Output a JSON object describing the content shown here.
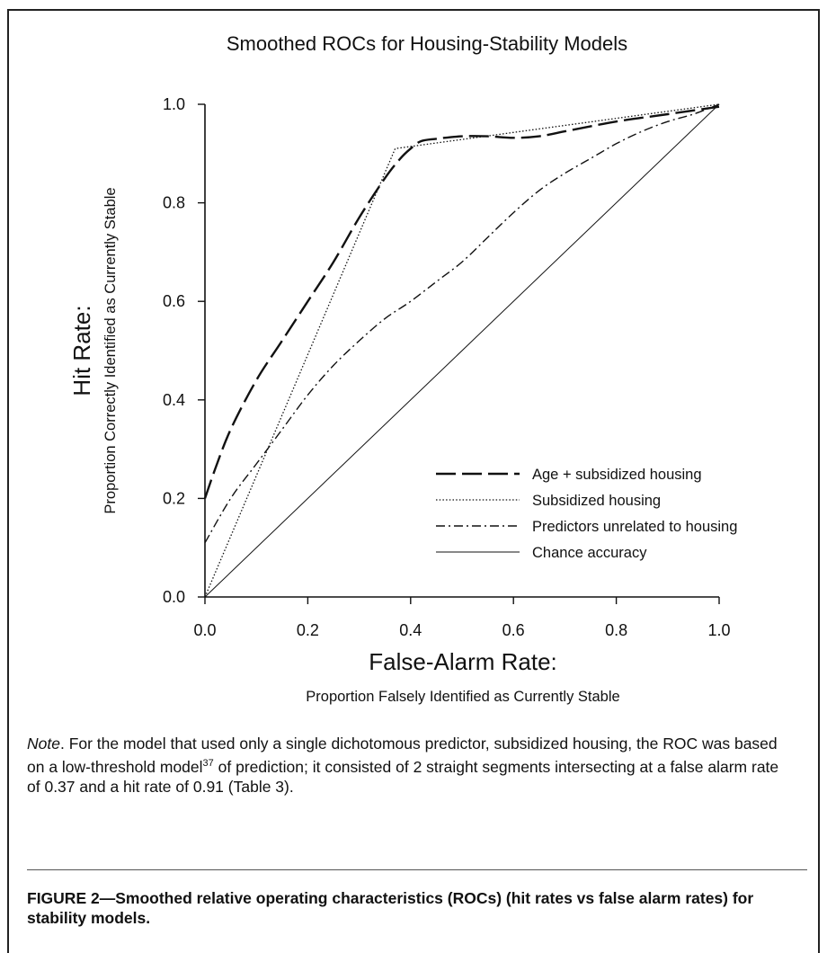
{
  "chart_data": {
    "type": "line",
    "title": "Smoothed ROCs for Housing-Stability Models",
    "xlabel": "False-Alarm Rate:",
    "xlabel_sub": "Proportion Falsely Identified as Currently Stable",
    "ylabel": "Hit Rate:",
    "ylabel_sub": "Proportion  Correctly  Identified as Currently Stable",
    "xlim": [
      0,
      1
    ],
    "ylim": [
      0,
      1
    ],
    "xticks": [
      "0.0",
      "0.2",
      "0.4",
      "0.6",
      "0.8",
      "1.0"
    ],
    "yticks": [
      "0.0",
      "0.2",
      "0.4",
      "0.6",
      "0.8",
      "1.0"
    ],
    "grid": false,
    "legend_position": "bottom-right",
    "series": [
      {
        "name": "Age + subsidized housing",
        "style": "long-dash",
        "x": [
          0,
          0.02,
          0.05,
          0.1,
          0.15,
          0.2,
          0.25,
          0.3,
          0.35,
          0.38,
          0.4,
          0.42,
          0.45,
          0.5,
          0.55,
          0.6,
          0.65,
          0.7,
          0.8,
          0.9,
          1.0
        ],
        "y": [
          0.2,
          0.26,
          0.34,
          0.44,
          0.52,
          0.6,
          0.68,
          0.77,
          0.85,
          0.89,
          0.91,
          0.925,
          0.93,
          0.935,
          0.935,
          0.932,
          0.935,
          0.945,
          0.965,
          0.98,
          0.995
        ]
      },
      {
        "name": "Subsidized housing",
        "style": "dotted",
        "x": [
          0,
          0.37,
          1.0
        ],
        "y": [
          0,
          0.91,
          1.0
        ]
      },
      {
        "name": "Predictors unrelated to housing",
        "style": "dash-dot",
        "x": [
          0,
          0.05,
          0.1,
          0.15,
          0.2,
          0.25,
          0.3,
          0.35,
          0.4,
          0.45,
          0.5,
          0.55,
          0.6,
          0.65,
          0.7,
          0.75,
          0.8,
          0.85,
          0.9,
          0.95,
          1.0
        ],
        "y": [
          0.11,
          0.2,
          0.27,
          0.34,
          0.41,
          0.47,
          0.52,
          0.565,
          0.6,
          0.64,
          0.68,
          0.73,
          0.78,
          0.825,
          0.86,
          0.89,
          0.92,
          0.945,
          0.965,
          0.98,
          1.0
        ]
      },
      {
        "name": "Chance accuracy",
        "style": "solid-thin",
        "x": [
          0,
          1.0
        ],
        "y": [
          0,
          1.0
        ]
      }
    ]
  },
  "note": {
    "label": "Note",
    "text_1": ". For the model that used only a single dichotomous predictor, subsidized housing, the ROC was based on a low-threshold model",
    "superscript": "37",
    "text_2": " of prediction; it consisted of 2 straight segments intersecting at a false alarm rate of 0.37 and a hit rate of 0.91 (Table 3)."
  },
  "caption": "FIGURE 2—Smoothed relative operating characteristics (ROCs) (hit rates vs false alarm rates) for stability models."
}
